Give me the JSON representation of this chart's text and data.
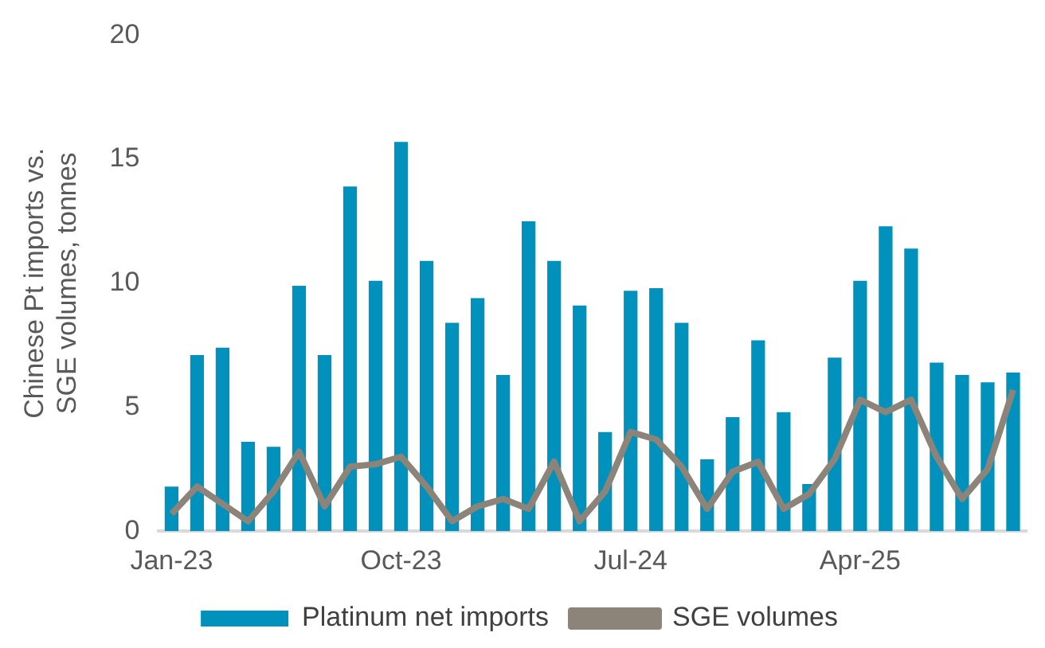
{
  "chart_data": {
    "type": "bar",
    "ylabel": "Chinese Pt imports vs. SGE volumes, tonnes",
    "categories": [
      "Jan-23",
      null,
      null,
      null,
      null,
      null,
      null,
      null,
      null,
      "Oct-23",
      null,
      null,
      null,
      null,
      null,
      null,
      null,
      null,
      "Jul-24",
      null,
      null,
      null,
      null,
      null,
      null,
      null,
      null,
      "Apr-25",
      null,
      null,
      null,
      null,
      null,
      null
    ],
    "series": [
      {
        "name": "Platinum net imports",
        "color": "#0091bd",
        "values": [
          1.8,
          7.1,
          7.4,
          3.6,
          3.4,
          9.9,
          7.1,
          13.9,
          10.1,
          15.7,
          10.9,
          8.4,
          9.4,
          6.3,
          12.5,
          10.9,
          9.1,
          4.0,
          9.7,
          9.8,
          8.4,
          2.9,
          4.6,
          7.7,
          4.8,
          1.9,
          7.0,
          10.1,
          12.3,
          11.4,
          6.8,
          6.3,
          6.0,
          6.4
        ]
      },
      {
        "name": "SGE volumes",
        "type": "line",
        "color": "#8c8479",
        "values": [
          0.7,
          1.8,
          1.1,
          0.4,
          1.6,
          3.2,
          1.0,
          2.6,
          2.7,
          3.0,
          1.8,
          0.4,
          1.0,
          1.3,
          0.9,
          2.8,
          0.4,
          1.6,
          4.0,
          3.7,
          2.6,
          0.9,
          2.4,
          2.8,
          0.9,
          1.5,
          2.9,
          5.3,
          4.8,
          5.3,
          3.0,
          1.3,
          2.5,
          5.7
        ]
      }
    ],
    "ylim": [
      0,
      20
    ],
    "yticks": [
      0,
      5,
      10,
      15,
      20
    ],
    "grid": false,
    "legend": "bottom",
    "marker": "none"
  }
}
